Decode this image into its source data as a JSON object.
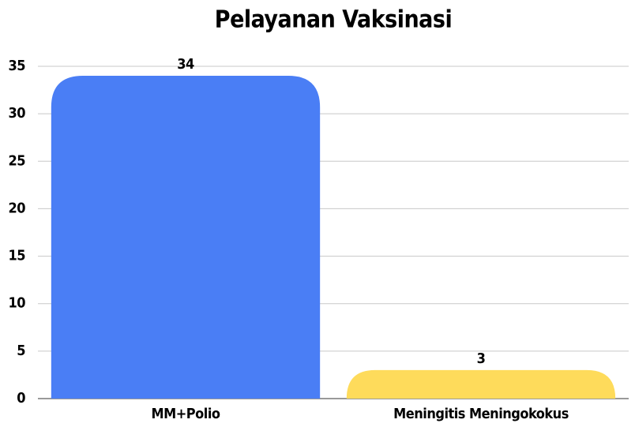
{
  "chart_data": {
    "type": "bar",
    "title": "Pelayanan Vaksinasi",
    "categories": [
      "MM+Polio",
      "Meningitis Meningokokus"
    ],
    "values": [
      34,
      3
    ],
    "colors": [
      "#4a7ef5",
      "#fedb5b"
    ],
    "ylim": [
      0,
      35
    ],
    "yticks": [
      0,
      5,
      10,
      15,
      20,
      25,
      30,
      35
    ],
    "grid": true
  }
}
